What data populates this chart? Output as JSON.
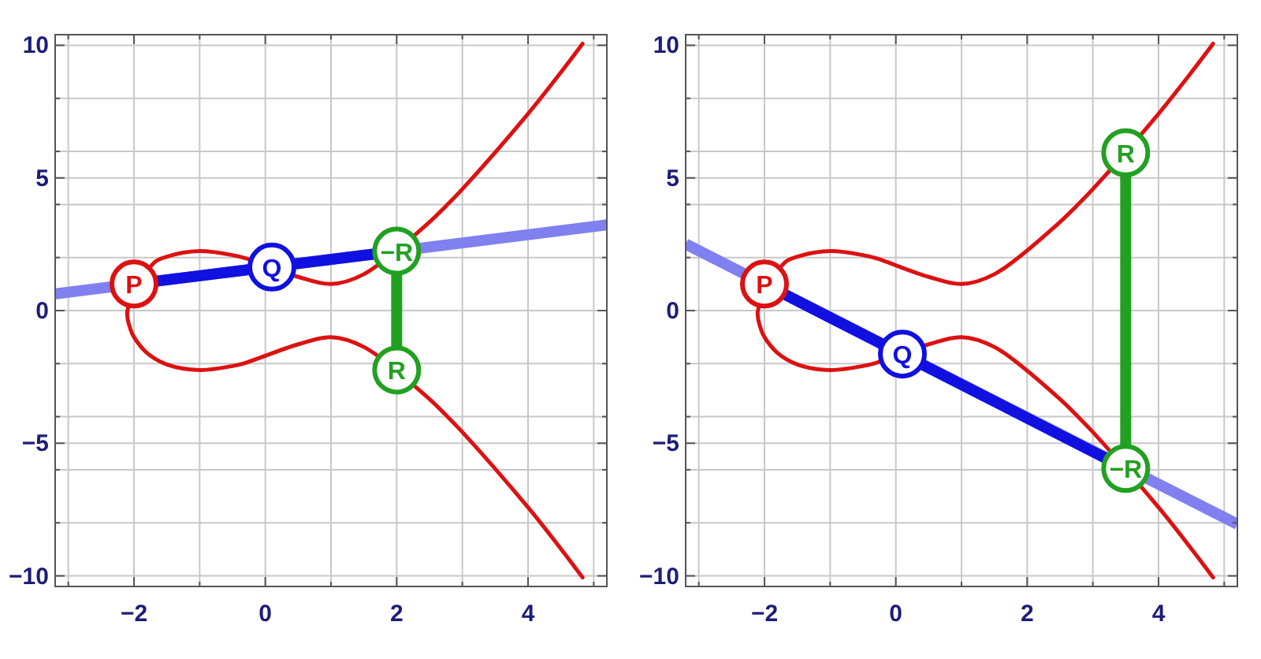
{
  "chart_data": [
    {
      "type": "line",
      "xlim": [
        -3.2,
        5.2
      ],
      "ylim": [
        -10.4,
        10.4
      ],
      "xticks": [
        {
          "value": -3,
          "label": null
        },
        -2,
        {
          "value": -1,
          "label": null
        },
        0,
        {
          "value": 1,
          "label": null
        },
        2,
        {
          "value": 3,
          "label": null
        },
        4,
        {
          "value": 5,
          "label": null
        }
      ],
      "yticks": [
        -10,
        {
          "value": -8,
          "label": null
        },
        {
          "value": -6,
          "label": null
        },
        -5,
        {
          "value": -4,
          "label": null
        },
        {
          "value": -2,
          "label": null
        },
        0,
        {
          "value": 2,
          "label": null
        },
        {
          "value": 4,
          "label": null
        },
        5,
        {
          "value": 6,
          "label": null
        },
        {
          "value": 8,
          "label": null
        },
        10
      ],
      "grid": true,
      "series": [
        {
          "color": "#dd1111",
          "x": [
            4.83,
            4.5,
            4,
            3,
            2.75,
            2.5,
            1.5,
            1,
            0.5,
            -0.3,
            -0.5,
            -1,
            -1.5,
            -1.7,
            -2.1,
            -2.05,
            -2,
            -1.8,
            -1.5,
            -1,
            -0.5,
            -0.3,
            0.5,
            1,
            1.5,
            2.5,
            2.75,
            3,
            4,
            4.5,
            4.83
          ],
          "values": [
            10.06,
            8.98,
            7.42,
            4.58,
            3.94,
            3.34,
            1.37,
            1,
            1.27,
            1.97,
            2.09,
            2.24,
            2.03,
            1.79,
            0,
            -0.73,
            -1,
            -1.6,
            -2.03,
            -2.24,
            -2.09,
            -1.97,
            -1.27,
            -1,
            -1.37,
            -3.34,
            -3.94,
            -4.58,
            -7.42,
            -8.98,
            -10.06
          ]
        },
        {
          "color": "#8080f0",
          "x": [
            -3.2,
            5.2
          ],
          "values": [
            0.63,
            3.23
          ]
        },
        {
          "color": "#1010e0",
          "x": [
            -1.66,
            1.66
          ],
          "values": [
            1.11,
            2.13
          ]
        },
        {
          "color": "#22a022",
          "x": [
            2,
            2
          ],
          "values": [
            1.4,
            -1.4
          ]
        },
        {
          "type": "scatter",
          "marker": "circle",
          "color": "#dd1111",
          "x": [
            -2
          ],
          "values": [
            1
          ]
        },
        {
          "type": "scatter",
          "marker": "circle",
          "color": "#1010e0",
          "x": [
            0.1
          ],
          "values": [
            1.64
          ]
        },
        {
          "type": "scatter",
          "marker": "circle",
          "color": "#22a022",
          "x": [
            2
          ],
          "values": [
            2.24
          ]
        },
        {
          "type": "scatter",
          "marker": "circle",
          "color": "#22a022",
          "x": [
            2
          ],
          "values": [
            -2.24
          ]
        }
      ],
      "annotations": [
        {
          "text": "P",
          "x": -2,
          "y": 1
        },
        {
          "text": "Q",
          "x": 0.1,
          "y": 1.64
        },
        {
          "text": "−R",
          "x": 2,
          "y": 2.24
        },
        {
          "text": "R",
          "x": 2,
          "y": -2.24
        }
      ]
    },
    {
      "type": "line",
      "xlim": [
        -3.2,
        5.2
      ],
      "ylim": [
        -10.4,
        10.4
      ],
      "xticks": [
        {
          "value": -3,
          "label": null
        },
        -2,
        {
          "value": -1,
          "label": null
        },
        0,
        {
          "value": 1,
          "label": null
        },
        2,
        {
          "value": 3,
          "label": null
        },
        4,
        {
          "value": 5,
          "label": null
        }
      ],
      "yticks": [
        -10,
        {
          "value": -8,
          "label": null
        },
        {
          "value": -6,
          "label": null
        },
        -5,
        {
          "value": -4,
          "label": null
        },
        {
          "value": -2,
          "label": null
        },
        0,
        {
          "value": 2,
          "label": null
        },
        {
          "value": 4,
          "label": null
        },
        5,
        {
          "value": 6,
          "label": null
        },
        {
          "value": 8,
          "label": null
        },
        10
      ],
      "grid": true,
      "series": [
        {
          "color": "#dd1111",
          "x": [
            4.83,
            4.5,
            4,
            3,
            2.75,
            2.5,
            1.5,
            1,
            0.5,
            -0.3,
            -0.5,
            -1,
            -1.5,
            -1.7,
            -2.1,
            -2.05,
            -2,
            -1.8,
            -1.5,
            -1,
            -0.5,
            -0.3,
            0.5,
            1,
            1.5,
            2.5,
            2.75,
            3,
            4,
            4.5,
            4.83
          ],
          "values": [
            10.06,
            8.98,
            7.42,
            4.58,
            3.94,
            3.34,
            1.37,
            1,
            1.27,
            1.97,
            2.09,
            2.24,
            2.03,
            1.79,
            0,
            -0.73,
            -1,
            -1.6,
            -2.03,
            -2.24,
            -2.09,
            -1.97,
            -1.27,
            -1,
            -1.37,
            -3.34,
            -3.94,
            -4.58,
            -7.42,
            -8.98,
            -10.06
          ]
        },
        {
          "color": "#8080f0",
          "x": [
            -3.2,
            5.2
          ],
          "values": [
            2.51,
            -8.05
          ]
        },
        {
          "color": "#1010e0",
          "x": [
            -1.7,
            3.2
          ],
          "values": [
            0.62,
            -5.57
          ]
        },
        {
          "color": "#22a022",
          "x": [
            3.5,
            3.5
          ],
          "values": [
            5.11,
            -5.11
          ]
        },
        {
          "type": "scatter",
          "marker": "circle",
          "color": "#dd1111",
          "x": [
            -2
          ],
          "values": [
            1
          ]
        },
        {
          "type": "scatter",
          "marker": "circle",
          "color": "#1010e0",
          "x": [
            0.1
          ],
          "values": [
            -1.64
          ]
        },
        {
          "type": "scatter",
          "marker": "circle",
          "color": "#22a022",
          "x": [
            3.5
          ],
          "values": [
            5.95
          ]
        },
        {
          "type": "scatter",
          "marker": "circle",
          "color": "#22a022",
          "x": [
            3.5
          ],
          "values": [
            -5.95
          ]
        }
      ],
      "annotations": [
        {
          "text": "P",
          "x": -2,
          "y": 1
        },
        {
          "text": "Q",
          "x": 0.1,
          "y": -1.64
        },
        {
          "text": "R",
          "x": 3.5,
          "y": 5.95
        },
        {
          "text": "−R",
          "x": 3.5,
          "y": -5.95
        }
      ]
    }
  ]
}
